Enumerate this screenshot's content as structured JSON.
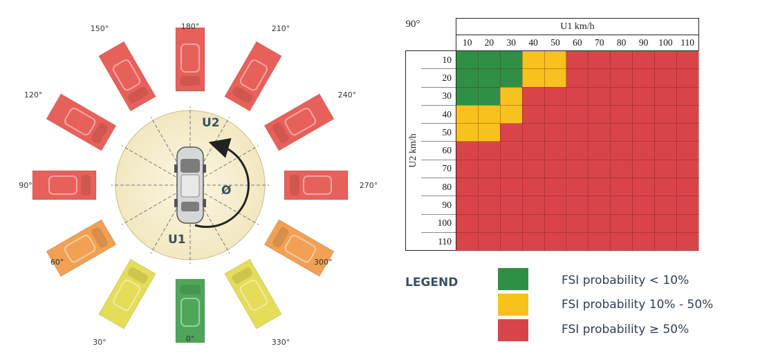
{
  "diagram": {
    "angles": [
      "0°",
      "30°",
      "60°",
      "90°",
      "120°",
      "150°",
      "180°",
      "210°",
      "240°",
      "270°",
      "300°",
      "330°"
    ],
    "risk_colors": [
      "green",
      "yellow",
      "orange",
      "red",
      "red",
      "red",
      "red",
      "red",
      "red",
      "red",
      "orange",
      "yellow"
    ],
    "palette": {
      "green": "#4ea65a",
      "yellow": "#e4dd58",
      "orange": "#f1a054",
      "red": "#e8605a",
      "disc": "#f6efcf"
    },
    "u1_label": "U1",
    "u2_label": "U2",
    "phi_label": "Ø"
  },
  "matrix": {
    "corner_label": "90°",
    "u1_title": "U1 km/h",
    "u2_title": "U2 km/h",
    "u1_speeds": [
      "10",
      "20",
      "30",
      "40",
      "50",
      "60",
      "70",
      "80",
      "90",
      "100",
      "110"
    ],
    "u2_speeds": [
      "10",
      "20",
      "30",
      "40",
      "50",
      "60",
      "70",
      "80",
      "90",
      "100",
      "110"
    ],
    "cells": [
      [
        "G",
        "G",
        "G",
        "Y",
        "Y",
        "R",
        "R",
        "R",
        "R",
        "R",
        "R"
      ],
      [
        "G",
        "G",
        "G",
        "Y",
        "Y",
        "R",
        "R",
        "R",
        "R",
        "R",
        "R"
      ],
      [
        "G",
        "G",
        "Y",
        "R",
        "R",
        "R",
        "R",
        "R",
        "R",
        "R",
        "R"
      ],
      [
        "Y",
        "Y",
        "Y",
        "R",
        "R",
        "R",
        "R",
        "R",
        "R",
        "R",
        "R"
      ],
      [
        "Y",
        "Y",
        "R",
        "R",
        "R",
        "R",
        "R",
        "R",
        "R",
        "R",
        "R"
      ],
      [
        "R",
        "R",
        "R",
        "R",
        "R",
        "R",
        "R",
        "R",
        "R",
        "R",
        "R"
      ],
      [
        "R",
        "R",
        "R",
        "R",
        "R",
        "R",
        "R",
        "R",
        "R",
        "R",
        "R"
      ],
      [
        "R",
        "R",
        "R",
        "R",
        "R",
        "R",
        "R",
        "R",
        "R",
        "R",
        "R"
      ],
      [
        "R",
        "R",
        "R",
        "R",
        "R",
        "R",
        "R",
        "R",
        "R",
        "R",
        "R"
      ],
      [
        "R",
        "R",
        "R",
        "R",
        "R",
        "R",
        "R",
        "R",
        "R",
        "R",
        "R"
      ],
      [
        "R",
        "R",
        "R",
        "R",
        "R",
        "R",
        "R",
        "R",
        "R",
        "R",
        "R"
      ]
    ],
    "colors": {
      "G": "#2f8f45",
      "Y": "#f7c21d",
      "R": "#d9444b"
    }
  },
  "legend": {
    "title": "LEGEND",
    "items": [
      {
        "color": "#2f8f45",
        "label": "FSI probability < 10%"
      },
      {
        "color": "#f7c21d",
        "label": "FSI probability 10% - 50%"
      },
      {
        "color": "#d9444b",
        "label": "FSI probability ≥ 50%"
      }
    ]
  }
}
